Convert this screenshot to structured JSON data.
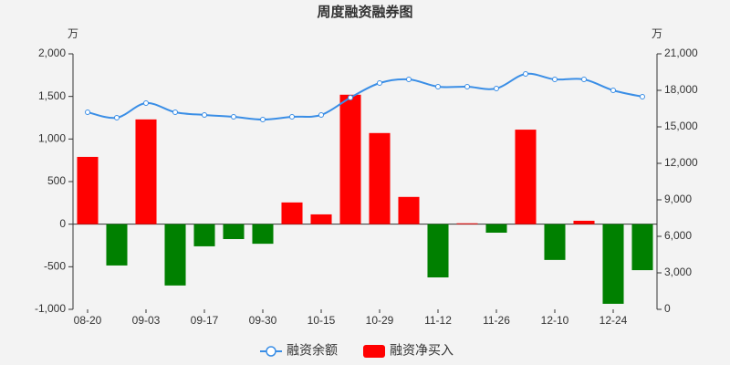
{
  "chart_data": {
    "type": "bar_line",
    "title": "周度融资融券图",
    "y_unit": "万",
    "y2_unit": "万",
    "categories": [
      "08-20",
      null,
      "09-03",
      null,
      "09-17",
      null,
      "09-30",
      null,
      "10-15",
      null,
      "10-29",
      null,
      "11-12",
      null,
      "11-26",
      null,
      "12-10",
      null,
      "12-24",
      null
    ],
    "ylim": [
      -1000,
      2000
    ],
    "yticks": [
      {
        "value": -1000,
        "label": "-1,000"
      },
      -500,
      0,
      500,
      {
        "value": 1000,
        "label": "1,000"
      },
      {
        "value": 1500,
        "label": "1,500"
      },
      {
        "value": 2000,
        "label": "2,000"
      }
    ],
    "y2lim": [
      0,
      21000
    ],
    "y2ticks": [
      0,
      {
        "value": 3000,
        "label": "3,000"
      },
      {
        "value": 6000,
        "label": "6,000"
      },
      {
        "value": 9000,
        "label": "9,000"
      },
      {
        "value": 12000,
        "label": "12,000"
      },
      {
        "value": 15000,
        "label": "15,000"
      },
      {
        "value": 18000,
        "label": "18,000"
      },
      {
        "value": 21000,
        "label": "21,000"
      }
    ],
    "series": [
      {
        "name": "融资余额",
        "type": "line",
        "axis": "y2",
        "color": "#3a8ee6",
        "values": [
          16200,
          15750,
          16950,
          16200,
          15975,
          15825,
          15600,
          15825,
          15975,
          17400,
          18600,
          18900,
          18300,
          18300,
          18150,
          19350,
          18900,
          18900,
          18000,
          17475
        ]
      },
      {
        "name": "融资净买入",
        "type": "bar",
        "axis": "y",
        "color": "#ff0000",
        "negative_color": "#008000",
        "values": [
          790,
          -485,
          1230,
          -720,
          -260,
          -175,
          -230,
          255,
          115,
          1520,
          1070,
          320,
          -625,
          10,
          -100,
          1110,
          -420,
          40,
          -935,
          -540
        ]
      }
    ]
  }
}
